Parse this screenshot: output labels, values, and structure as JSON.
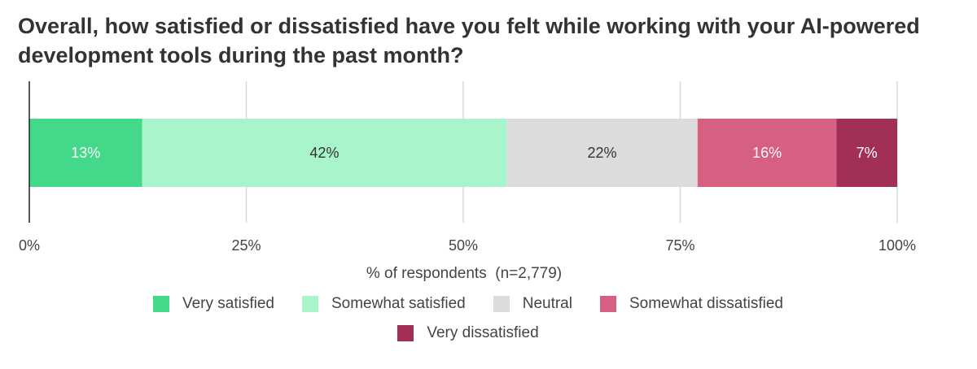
{
  "chart_data": {
    "type": "bar",
    "orientation": "horizontal-stacked",
    "title": "Overall, how satisfied or dissatisfied have you felt while working with your AI-powered development tools during the past month?",
    "xlabel": "% of respondents  (n=2,779)",
    "ylabel": "",
    "xlim": [
      0,
      100
    ],
    "x_ticks": [
      0,
      25,
      50,
      75,
      100
    ],
    "x_tick_labels": [
      "0%",
      "25%",
      "50%",
      "75%",
      "100%"
    ],
    "grid": true,
    "legend_position": "bottom",
    "series": [
      {
        "name": "Very satisfied",
        "values": [
          13
        ],
        "label": "13%",
        "color": "#44d98a",
        "label_color": "#ffffff"
      },
      {
        "name": "Somewhat satisfied",
        "values": [
          42
        ],
        "label": "42%",
        "color": "#a8f5cc",
        "label_color": "#333333"
      },
      {
        "name": "Neutral",
        "values": [
          22
        ],
        "label": "22%",
        "color": "#dcdcdc",
        "label_color": "#333333"
      },
      {
        "name": "Somewhat dissatisfied",
        "values": [
          16
        ],
        "label": "16%",
        "color": "#d75f82",
        "label_color": "#ffffff"
      },
      {
        "name": "Very dissatisfied",
        "values": [
          7
        ],
        "label": "7%",
        "color": "#a12f57",
        "label_color": "#ffffff"
      }
    ]
  }
}
